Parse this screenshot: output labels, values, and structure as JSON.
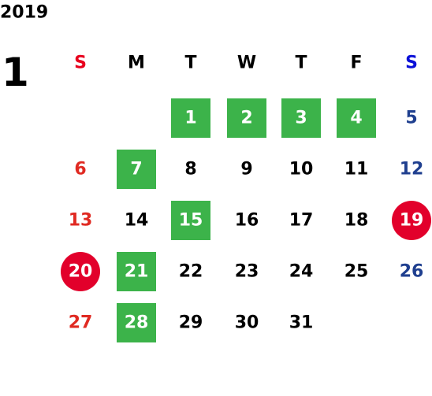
{
  "header": {
    "year": "2019",
    "month": "1"
  },
  "weekdays": [
    "S",
    "M",
    "T",
    "W",
    "T",
    "F",
    "S"
  ],
  "weeks": [
    [
      null,
      null,
      1,
      2,
      3,
      4,
      5
    ],
    [
      6,
      7,
      8,
      9,
      10,
      11,
      12
    ],
    [
      13,
      14,
      15,
      16,
      17,
      18,
      19
    ],
    [
      20,
      21,
      22,
      23,
      24,
      25,
      26
    ],
    [
      27,
      28,
      29,
      30,
      31,
      null,
      null
    ]
  ],
  "green_days": [
    1,
    2,
    3,
    4,
    7,
    15,
    21,
    28
  ],
  "red_days": [
    19,
    20
  ],
  "colors": {
    "sunday_header": "#e8001d",
    "saturday_header": "#0a10d8",
    "sunday": "#e02a22",
    "saturday": "#1f3f8f",
    "weekday": "#000000",
    "green": "#3cb34a",
    "red": "#e2002b",
    "highlight_text": "#ffffff"
  }
}
